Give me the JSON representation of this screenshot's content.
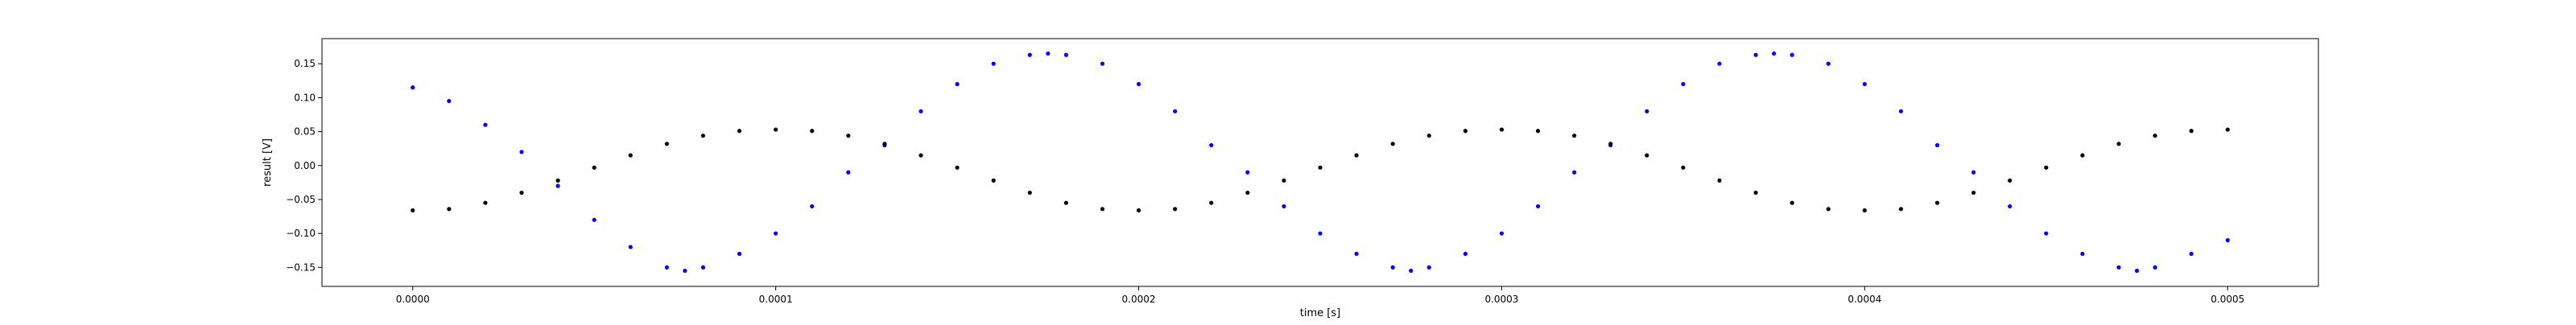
{
  "chart_data": {
    "type": "scatter",
    "title": "",
    "xlabel": "time [s]",
    "ylabel": "result [V]",
    "xlim": [
      -2.5e-05,
      0.000525
    ],
    "ylim": [
      -0.178,
      0.187
    ],
    "grid": false,
    "x_ticks": [
      {
        "value": 0.0,
        "label": "0.0000"
      },
      {
        "value": 0.0001,
        "label": "0.0001"
      },
      {
        "value": 0.0002,
        "label": "0.0002"
      },
      {
        "value": 0.0003,
        "label": "0.0003"
      },
      {
        "value": 0.0004,
        "label": "0.0004"
      },
      {
        "value": 0.0005,
        "label": "0.0005"
      }
    ],
    "y_ticks": [
      {
        "value": -0.15,
        "label": "−0.15"
      },
      {
        "value": -0.1,
        "label": "−0.10"
      },
      {
        "value": -0.05,
        "label": "−0.05"
      },
      {
        "value": 0.0,
        "label": "0.00"
      },
      {
        "value": 0.05,
        "label": "0.05"
      },
      {
        "value": 0.1,
        "label": "0.10"
      },
      {
        "value": 0.15,
        "label": "0.15"
      }
    ],
    "series": [
      {
        "color": "#0000ff",
        "marker": "dot",
        "x": [
          0,
          1e-05,
          2e-05,
          3e-05,
          4e-05,
          5e-05,
          6e-05,
          7e-05,
          7.5e-05,
          8e-05,
          9e-05,
          0.0001,
          0.00011,
          0.00012,
          0.00013,
          0.00014,
          0.00015,
          0.00016,
          0.00017,
          0.000175,
          0.00018,
          0.00019,
          0.0002,
          0.00021,
          0.00022,
          0.00023,
          0.00024,
          0.00025,
          0.00026,
          0.00027,
          0.000275,
          0.00028,
          0.00029,
          0.0003,
          0.00031,
          0.00032,
          0.00033,
          0.00034,
          0.00035,
          0.00036,
          0.00037,
          0.000375,
          0.00038,
          0.00039,
          0.0004,
          0.00041,
          0.00042,
          0.00043,
          0.00044,
          0.00045,
          0.00046,
          0.00047,
          0.000475,
          0.00048,
          0.00049,
          0.0005
        ],
        "y": [
          0.115,
          0.095,
          0.06,
          0.02,
          -0.03,
          -0.08,
          -0.12,
          -0.15,
          -0.155,
          -0.15,
          -0.13,
          -0.1,
          -0.06,
          -0.01,
          0.03,
          0.08,
          0.12,
          0.15,
          0.163,
          0.165,
          0.163,
          0.15,
          0.12,
          0.08,
          0.03,
          -0.01,
          -0.06,
          -0.1,
          -0.13,
          -0.15,
          -0.155,
          -0.15,
          -0.13,
          -0.1,
          -0.06,
          -0.01,
          0.03,
          0.08,
          0.12,
          0.15,
          0.163,
          0.165,
          0.163,
          0.15,
          0.12,
          0.08,
          0.03,
          -0.01,
          -0.06,
          -0.1,
          -0.13,
          -0.15,
          -0.155,
          -0.15,
          -0.13,
          -0.11
        ]
      },
      {
        "color": "#000000",
        "marker": "dot",
        "x": [
          0,
          1e-05,
          2e-05,
          3e-05,
          4e-05,
          5e-05,
          6e-05,
          7e-05,
          8e-05,
          9e-05,
          0.0001,
          0.00011,
          0.00012,
          0.00013,
          0.00014,
          0.00015,
          0.00016,
          0.00017,
          0.00018,
          0.00019,
          0.0002,
          0.00021,
          0.00022,
          0.00023,
          0.00024,
          0.00025,
          0.00026,
          0.00027,
          0.00028,
          0.00029,
          0.0003,
          0.00031,
          0.00032,
          0.00033,
          0.00034,
          0.00035,
          0.00036,
          0.00037,
          0.00038,
          0.00039,
          0.0004,
          0.00041,
          0.00042,
          0.00043,
          0.00044,
          0.00045,
          0.00046,
          0.00047,
          0.00048,
          0.00049,
          0.0005
        ],
        "y": [
          -0.066,
          -0.064,
          -0.055,
          -0.04,
          -0.022,
          -0.003,
          0.015,
          0.032,
          0.044,
          0.051,
          0.053,
          0.051,
          0.044,
          0.032,
          0.015,
          -0.003,
          -0.022,
          -0.04,
          -0.055,
          -0.064,
          -0.066,
          -0.064,
          -0.055,
          -0.04,
          -0.022,
          -0.003,
          0.015,
          0.032,
          0.044,
          0.051,
          0.053,
          0.051,
          0.044,
          0.032,
          0.015,
          -0.003,
          -0.022,
          -0.04,
          -0.055,
          -0.064,
          -0.066,
          -0.064,
          -0.055,
          -0.04,
          -0.022,
          -0.003,
          0.015,
          0.032,
          0.044,
          0.051,
          0.053
        ]
      }
    ]
  }
}
